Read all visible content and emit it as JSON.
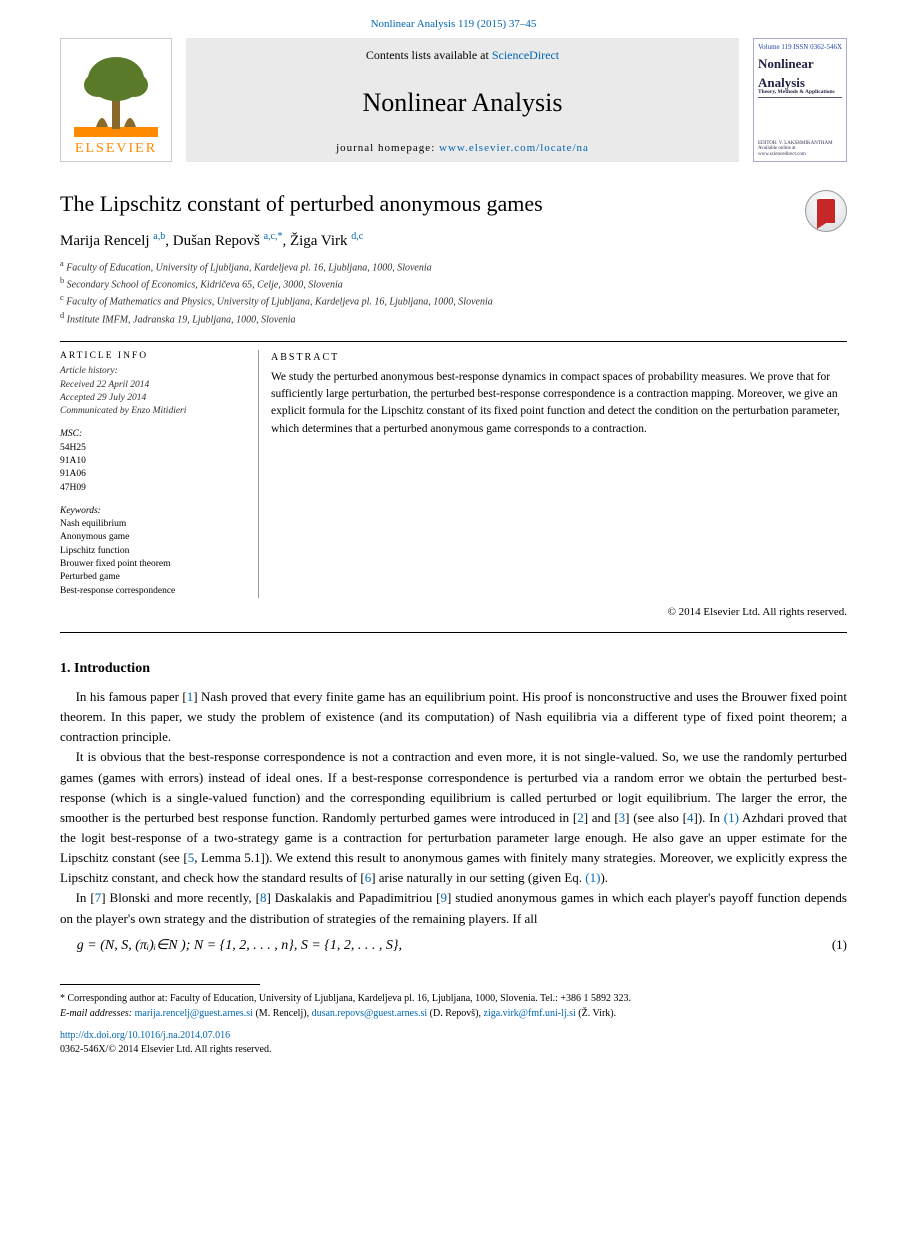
{
  "citation": {
    "text": "Nonlinear Analysis 119 (2015) 37–45",
    "href": "#"
  },
  "header": {
    "elsevier": "ELSEVIER",
    "contents_prefix": "Contents lists available at ",
    "contents_link": "ScienceDirect",
    "journal": "Nonlinear Analysis",
    "homepage_prefix": "journal homepage: ",
    "homepage_link": "www.elsevier.com/locate/na",
    "cover": {
      "vol": "Volume 119",
      "date": "June 2015",
      "issn": "ISSN 0362-546X",
      "title1": "Nonlinear",
      "title2": "Analysis",
      "sub": "Theory, Methods & Applications",
      "editor": "EDITOR: V. LAKSHMIKANTHAM",
      "avail": "Available online at www.sciencedirect.com"
    }
  },
  "paper": {
    "title": "The Lipschitz constant of perturbed anonymous games",
    "authors_html": "Marija Rencelj <sup>a,b</sup>, Dušan Repovš <sup>a,c,*</sup>, Žiga Virk <sup>d,c</sup>",
    "affiliations": [
      "a  Faculty of Education, University of Ljubljana, Kardeljeva pl. 16, Ljubljana, 1000, Slovenia",
      "b  Secondary School of Economics, Kidričeva 65, Celje, 3000, Slovenia",
      "c  Faculty of Mathematics and Physics, University of Ljubljana, Kardeljeva pl. 16, Ljubljana, 1000, Slovenia",
      "d  Institute IMFM, Jadranska 19, Ljubljana, 1000, Slovenia"
    ]
  },
  "meta": {
    "info_head": "ARTICLE INFO",
    "history": [
      "Article history:",
      "Received 22 April 2014",
      "Accepted 29 July 2014",
      "Communicated by Enzo Mitidieri"
    ],
    "msc_head": "MSC:",
    "msc": [
      "54H25",
      "91A10",
      "91A06",
      "47H09"
    ],
    "kw_head": "Keywords:",
    "keywords": [
      "Nash equilibrium",
      "Anonymous game",
      "Lipschitz function",
      "Brouwer fixed point theorem",
      "Perturbed game",
      "Best-response correspondence"
    ],
    "abstract_head": "ABSTRACT",
    "abstract": "We study the perturbed anonymous best-response dynamics in compact spaces of probability measures. We prove that for sufficiently large perturbation, the perturbed best-response correspondence is a contraction mapping. Moreover, we give an explicit formula for the Lipschitz constant of its fixed point function and detect the condition on the perturbation parameter, which determines that a perturbed anonymous game corresponds to a contraction."
  },
  "copyright": "© 2014 Elsevier Ltd. All rights reserved.",
  "intro": {
    "heading": "1. Introduction",
    "p1_a": "In his famous paper [",
    "p1_ref1": "1",
    "p1_b": "] Nash proved that every finite game has an equilibrium point. His proof is nonconstructive and uses the Brouwer fixed point theorem. In this paper, we study the problem of existence (and its computation) of Nash equilibria via a different type of fixed point theorem; a contraction principle.",
    "p2_a": "It is obvious that the best-response correspondence is not a contraction and even more, it is not single-valued. So, we use the randomly perturbed games (games with errors) instead of ideal ones. If a best-response correspondence is perturbed via a random error we obtain the perturbed best-response (which is a single-valued function) and the corresponding equilibrium is called perturbed or logit equilibrium. The larger the error, the smoother is the perturbed best response function. Randomly perturbed games were introduced in [",
    "p2_ref2": "2",
    "p2_b": "] and [",
    "p2_ref3": "3",
    "p2_c": "] (see also [",
    "p2_ref4": "4",
    "p2_d": "]). In ",
    "p2_e": " Azhdari proved that the logit best-response of a two-strategy game is a contraction for perturbation parameter large enough. He also gave an upper estimate for the Lipschitz constant (see [",
    "p2_ref5": "5",
    "p2_f": ", Lemma 5.1]). We extend this result to anonymous games with finitely many strategies. Moreover, we explicitly express the Lipschitz constant, and check how the standard results of [",
    "p2_ref6": "6",
    "p2_g": "] arise naturally in our setting (given Eq. ",
    "p2_h": ").",
    "p3_a": "In [",
    "p3_ref7": "7",
    "p3_b": "] Blonski and more recently, [",
    "p3_ref8": "8",
    "p3_c": "] Daskalakis and Papadimitriou [",
    "p3_ref9": "9",
    "p3_d": "] studied anonymous games in which each player's payoff function depends on the player's own strategy and the distribution of strategies of the remaining players. If all"
  },
  "equation": {
    "body": "g = (N, S, (πᵢ)ᵢ∈N );    N = {1, 2, . . . , n},   S = {1, 2, . . . , S},",
    "number": "(1)"
  },
  "footnotes": {
    "corr": "*  Corresponding author at: Faculty of Education, University of Ljubljana, Kardeljeva pl. 16, Ljubljana, 1000, Slovenia. Tel.: +386 1 5892 323.",
    "emails_prefix": "E-mail addresses: ",
    "email1": "marija.rencelj@guest.arnes.si",
    "email1_who": " (M. Rencelj), ",
    "email2": "dusan.repovs@guest.arnes.si",
    "email2_who": " (D. Repovš), ",
    "email3": "ziga.virk@fmf.uni-lj.si",
    "email3_who": " (Ž. Virk).",
    "doi": "http://dx.doi.org/10.1016/j.na.2014.07.016",
    "issn_line": "0362-546X/© 2014 Elsevier Ltd. All rights reserved."
  },
  "ref_eq1": "(1)"
}
